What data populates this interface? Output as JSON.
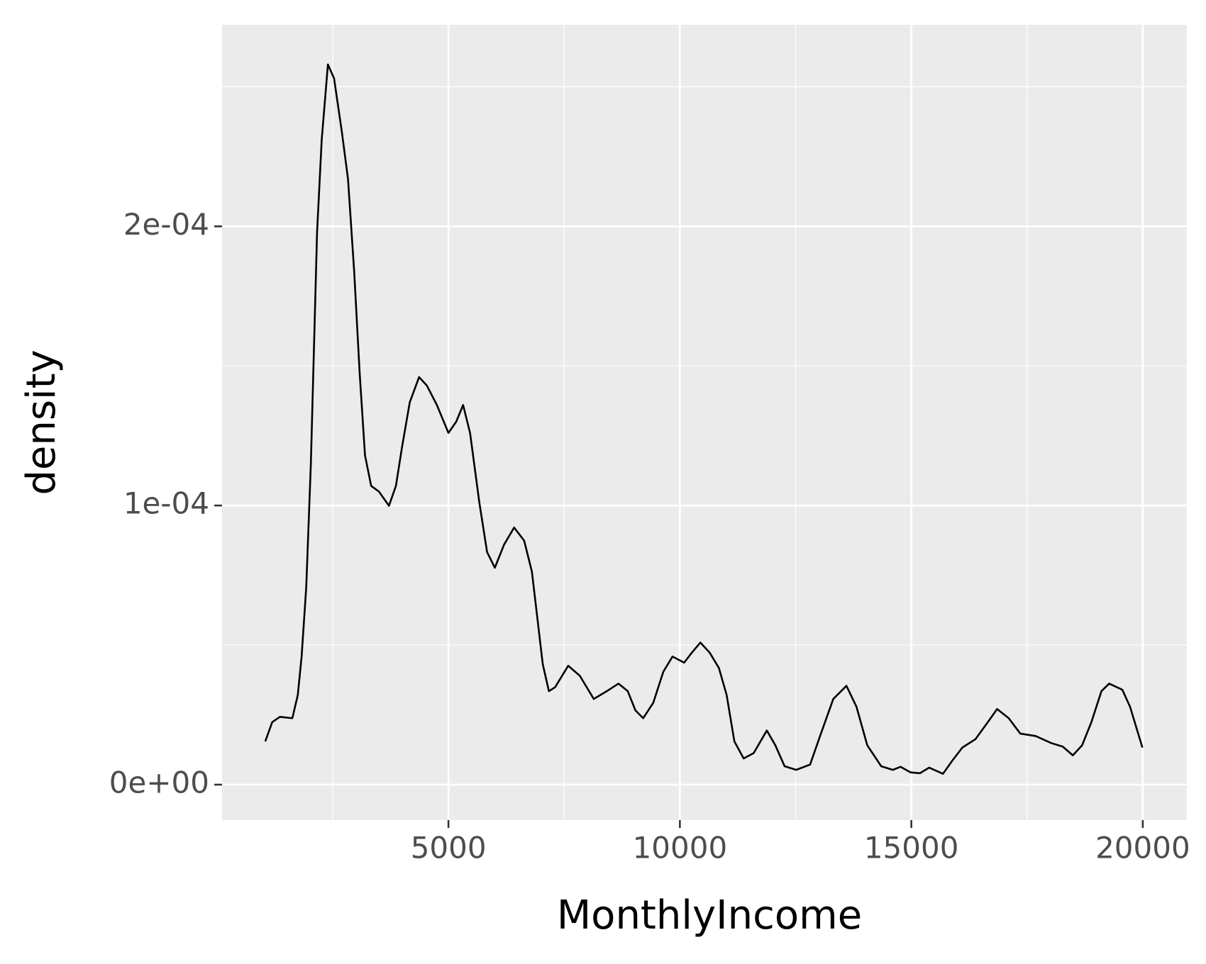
{
  "chart_data": {
    "type": "line",
    "x_label": "MonthlyIncome",
    "y_label": "density",
    "xlim": [
      109,
      20952
    ],
    "ylim": [
      -1.27e-05,
      0.0002722
    ],
    "xticks": [
      5000,
      10000,
      15000,
      20000
    ],
    "yticks": [
      {
        "value": 0,
        "label": "0e+00"
      },
      {
        "value": 0.0001,
        "label": "1e-04"
      },
      {
        "value": 0.0002,
        "label": "2e-04"
      }
    ],
    "grid": true,
    "series": [
      {
        "color": "#000000",
        "x": [
          1043,
          1193,
          1360,
          1628,
          1745,
          1828,
          1928,
          2028,
          2162,
          2262,
          2396,
          2529,
          2696,
          2830,
          2963,
          3080,
          3197,
          3331,
          3498,
          3715,
          3865,
          3998,
          4165,
          4366,
          4533,
          4750,
          5000,
          5167,
          5317,
          5467,
          5668,
          5835,
          6002,
          6202,
          6419,
          6636,
          6803,
          6920,
          7037,
          7170,
          7304,
          7588,
          7838,
          8139,
          8422,
          8673,
          8873,
          9040,
          9207,
          9424,
          9641,
          9841,
          10092,
          10259,
          10442,
          10643,
          10843,
          11010,
          11177,
          11377,
          11594,
          11878,
          12062,
          12262,
          12513,
          12813,
          13047,
          13314,
          13598,
          13815,
          14048,
          14349,
          14599,
          14766,
          14983,
          15184,
          15384,
          15684,
          15885,
          16102,
          16386,
          16653,
          16853,
          17104,
          17354,
          17688,
          18022,
          18272,
          18489,
          18689,
          18890,
          19107,
          19274,
          19558,
          19725,
          19992
        ],
        "values": [
          1.55e-05,
          2.24e-05,
          2.43e-05,
          2.38e-05,
          3.21e-05,
          4.59e-05,
          7.08e-05,
          0.0001151,
          0.000198,
          0.000231,
          0.000258,
          0.000253,
          0.000234,
          0.000217,
          0.000184,
          0.000148,
          0.000118,
          0.000107,
          0.000105,
          9.99e-05,
          0.000107,
          0.000121,
          0.000137,
          0.000146,
          0.000143,
          0.000136,
          0.000126,
          0.00013,
          0.000136,
          0.000126,
          0.000101,
          8.33e-05,
          7.77e-05,
          8.6e-05,
          9.21e-05,
          8.74e-05,
          7.63e-05,
          5.98e-05,
          4.32e-05,
          3.35e-05,
          3.49e-05,
          4.26e-05,
          3.9e-05,
          3.07e-05,
          3.35e-05,
          3.62e-05,
          3.35e-05,
          2.66e-05,
          2.38e-05,
          2.93e-05,
          4.04e-05,
          4.59e-05,
          4.37e-05,
          4.73e-05,
          5.09e-05,
          4.73e-05,
          4.18e-05,
          3.21e-05,
          1.55e-05,
          9.4e-06,
          1.13e-05,
          1.94e-05,
          1.41e-05,
          6.6e-06,
          5.3e-06,
          7.2e-06,
          1.83e-05,
          3.07e-05,
          3.54e-05,
          2.79e-05,
          1.41e-05,
          6.6e-06,
          5.3e-06,
          6.4e-06,
          4.4e-06,
          4.1e-06,
          6.1e-06,
          3.9e-06,
          8.6e-06,
          1.33e-05,
          1.63e-05,
          2.24e-05,
          2.71e-05,
          2.38e-05,
          1.83e-05,
          1.74e-05,
          1.49e-05,
          1.36e-05,
          1.05e-05,
          1.41e-05,
          2.24e-05,
          3.35e-05,
          3.62e-05,
          3.4e-05,
          2.79e-05,
          1.33e-05
        ]
      }
    ]
  }
}
